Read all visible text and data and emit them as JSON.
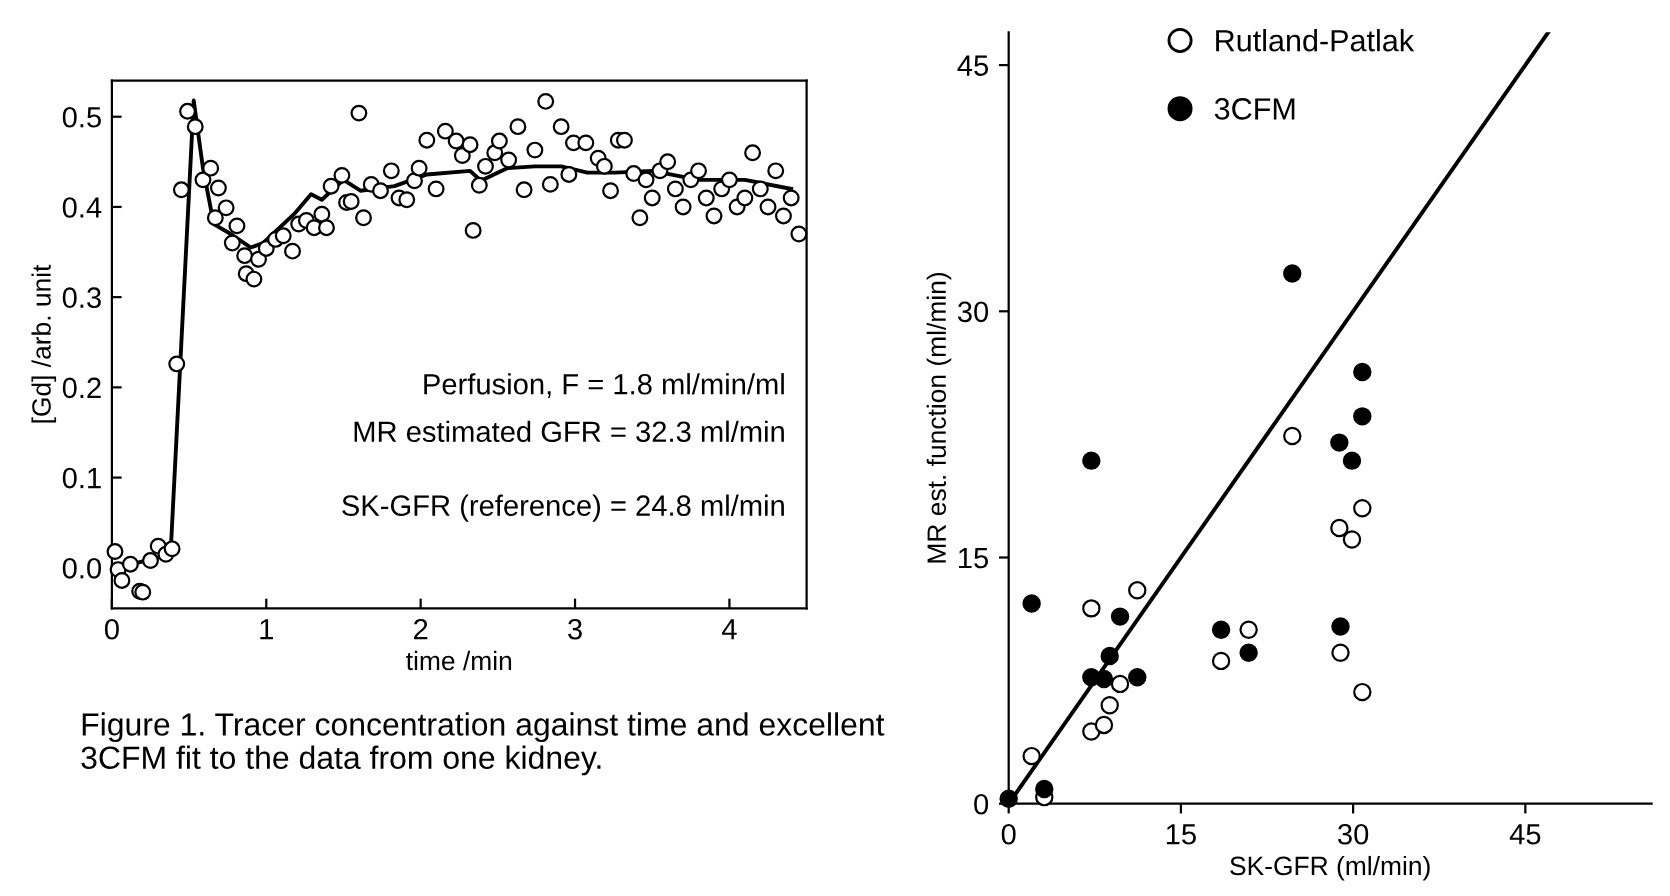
{
  "chart_data": [
    {
      "type": "scatter",
      "xlabel": "time /min",
      "ylabel": "[Gd] /arb. unit",
      "xlim": [
        0,
        4.5
      ],
      "ylim": [
        -0.045,
        0.54
      ],
      "xticks": [
        0,
        1,
        2,
        3,
        4
      ],
      "yticks": [
        {
          "value": 0,
          "label": "0.0"
        },
        0.1,
        0.2,
        0.3,
        0.4,
        0.5
      ],
      "grid": false,
      "legend": false,
      "marker": "circle",
      "annotations": [
        "Perfusion, F = 1.8 ml/min/ml",
        "MR estimated GFR = 32.3 ml/min",
        "SK-GFR (reference) = 24.8 ml/min",
        "Figure 1. Tracer concentration against time and excellent 3CFM fit to the data from one kidney."
      ],
      "series": [
        {
          "color": "#ffffff",
          "x": [
            0.02,
            0.04,
            0.065,
            0.12,
            0.18,
            0.2,
            0.25,
            0.3,
            0.35,
            0.39,
            0.42,
            0.45,
            0.49,
            0.54,
            0.59,
            0.64,
            0.67,
            0.69,
            0.74,
            0.78,
            0.81,
            0.86,
            0.87,
            0.92,
            0.95,
            1.0,
            1.06,
            1.11,
            1.17,
            1.21,
            1.26,
            1.31,
            1.36,
            1.39,
            1.42,
            1.49,
            1.52,
            1.55,
            1.6,
            1.63,
            1.68,
            1.74,
            1.81,
            1.86,
            1.91,
            1.96,
            1.99,
            2.04,
            2.1,
            2.16,
            2.23,
            2.27,
            2.32,
            2.34,
            2.38,
            2.42,
            2.48,
            2.51,
            2.57,
            2.63,
            2.67,
            2.74,
            2.81,
            2.84,
            2.91,
            2.96,
            2.99,
            3.07,
            3.15,
            3.19,
            3.23,
            3.28,
            3.32,
            3.38,
            3.42,
            3.46,
            3.5,
            3.55,
            3.6,
            3.65,
            3.7,
            3.75,
            3.8,
            3.85,
            3.9,
            3.95,
            4.0,
            4.05,
            4.1,
            4.15,
            4.2,
            4.25,
            4.3,
            4.35,
            4.4,
            4.45
          ],
          "values": [
            0.018,
            -0.002,
            -0.014,
            0.004,
            -0.026,
            -0.027,
            0.008,
            0.024,
            0.015,
            0.021,
            0.226,
            0.419,
            0.506,
            0.489,
            0.43,
            0.443,
            0.388,
            0.421,
            0.399,
            0.36,
            0.379,
            0.346,
            0.326,
            0.32,
            0.342,
            0.354,
            0.364,
            0.368,
            0.351,
            0.381,
            0.385,
            0.377,
            0.392,
            0.377,
            0.423,
            0.435,
            0.405,
            0.406,
            0.504,
            0.388,
            0.425,
            0.418,
            0.44,
            0.41,
            0.408,
            0.429,
            0.443,
            0.474,
            0.42,
            0.484,
            0.473,
            0.457,
            0.469,
            0.374,
            0.424,
            0.445,
            0.46,
            0.473,
            0.452,
            0.489,
            0.419,
            0.463,
            0.517,
            0.425,
            0.489,
            0.436,
            0.471,
            0.471,
            0.454,
            0.445,
            0.418,
            0.474,
            0.474,
            0.437,
            0.388,
            0.43,
            0.41,
            0.44,
            0.45,
            0.42,
            0.4,
            0.43,
            0.44,
            0.41,
            0.39,
            0.42,
            0.43,
            0.4,
            0.41,
            0.46,
            0.42,
            0.4,
            0.44,
            0.39,
            0.41,
            0.37
          ]
        },
        {
          "type": "line",
          "marker": "none",
          "color": "#000000",
          "x": [
            0,
            0.15,
            0.38,
            0.53,
            0.59,
            0.66,
            0.77,
            0.9,
            0.98,
            1.18,
            1.29,
            1.36,
            1.5,
            1.61,
            1.83,
            2.04,
            2.32,
            2.39,
            2.56,
            2.74,
            2.91,
            3.08,
            3.26,
            3.5,
            3.8,
            4.1,
            4.4
          ],
          "values": [
            0.0,
            0.005,
            0.015,
            0.518,
            0.443,
            0.381,
            0.37,
            0.355,
            0.36,
            0.392,
            0.414,
            0.408,
            0.43,
            0.418,
            0.423,
            0.436,
            0.44,
            0.429,
            0.443,
            0.445,
            0.445,
            0.438,
            0.438,
            0.44,
            0.43,
            0.43,
            0.42
          ]
        }
      ]
    },
    {
      "type": "scatter",
      "xlabel": "SK-GFR (ml/min)",
      "ylabel": "MR est. function (ml/min)",
      "xlim": [
        0,
        56
      ],
      "ylim": [
        0,
        47
      ],
      "xticks": [
        0,
        15,
        30,
        45
      ],
      "yticks": [
        0,
        15,
        30,
        45
      ],
      "grid": false,
      "legend": "top left",
      "marker": "circle",
      "series": [
        {
          "name": "Rutland-Patlak",
          "color": "#ffffff",
          "x": [
            2.0,
            7.2,
            11.2,
            7.2,
            8.3,
            8.8,
            9.7,
            3.1,
            18.5,
            20.9,
            24.7,
            28.8,
            29.9,
            30.8,
            28.9,
            30.8
          ],
          "values": [
            2.9,
            11.9,
            13.0,
            4.4,
            4.8,
            6.0,
            7.3,
            0.4,
            8.7,
            10.6,
            22.4,
            16.8,
            16.1,
            18.0,
            9.2,
            6.8
          ]
        },
        {
          "name": "3CFM",
          "color": "#000000",
          "x": [
            0,
            2.0,
            3.1,
            7.2,
            7.2,
            8.3,
            8.8,
            9.7,
            11.2,
            18.5,
            20.9,
            24.7,
            28.8,
            29.9,
            30.8,
            30.8,
            28.9
          ],
          "values": [
            0.3,
            12.2,
            0.9,
            20.9,
            7.7,
            7.6,
            9.0,
            11.4,
            7.7,
            10.6,
            9.2,
            32.3,
            22.0,
            20.9,
            26.3,
            23.6,
            10.8
          ]
        },
        {
          "type": "line",
          "marker": "none",
          "color": "#000000",
          "x": [
            0,
            47
          ],
          "values": [
            0,
            47
          ]
        }
      ]
    }
  ]
}
